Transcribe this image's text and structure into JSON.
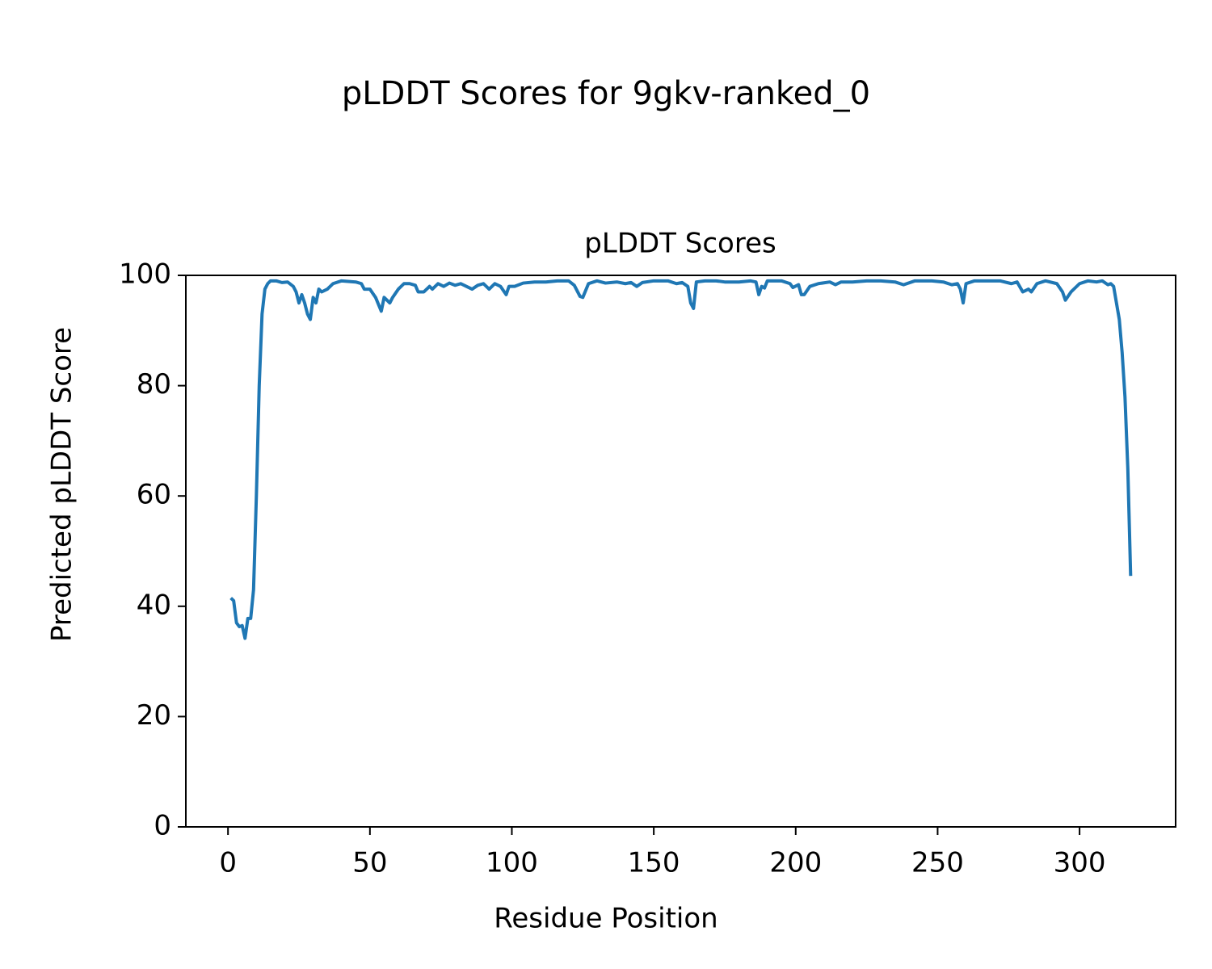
{
  "chart_data": {
    "type": "line",
    "title": "pLDDT Scores for 9gkv-ranked_0",
    "subtitle": "pLDDT Scores",
    "x_label": "Residue Position",
    "y_label": "Predicted pLDDT Score",
    "xlim": [
      -14.85,
      333.85
    ],
    "ylim": [
      0,
      100
    ],
    "xticks": [
      0,
      50,
      100,
      150,
      200,
      250,
      300
    ],
    "yticks": [
      0,
      20,
      40,
      60,
      80,
      100
    ],
    "grid": false,
    "series": [
      {
        "name": "pLDDT",
        "color": "#1f77b4",
        "x": [
          1,
          2,
          3,
          4,
          5,
          6,
          7,
          8,
          9,
          10,
          11,
          12,
          13,
          14,
          15,
          17,
          19,
          21,
          23,
          24,
          25,
          26,
          27,
          28,
          29,
          30,
          31,
          32,
          33,
          35,
          37,
          40,
          45,
          47,
          48,
          50,
          52,
          54,
          55,
          56,
          57,
          58,
          60,
          62,
          64,
          66,
          67,
          69,
          71,
          72,
          74,
          76,
          78,
          80,
          82,
          84,
          86,
          88,
          90,
          92,
          94,
          96,
          98,
          99,
          101,
          104,
          108,
          112,
          116,
          120,
          122,
          124,
          125,
          127,
          130,
          133,
          137,
          140,
          142,
          144,
          146,
          150,
          155,
          158,
          160,
          162,
          163,
          164,
          165,
          168,
          172,
          175,
          180,
          184,
          186,
          187,
          188,
          189,
          190,
          195,
          198,
          199,
          201,
          202,
          203,
          205,
          208,
          212,
          214,
          216,
          220,
          225,
          230,
          235,
          238,
          242,
          248,
          252,
          255,
          257,
          258,
          259,
          260,
          263,
          268,
          272,
          276,
          278,
          280,
          282,
          283,
          285,
          288,
          292,
          294,
          295,
          297,
          300,
          303,
          306,
          308,
          310,
          311,
          312,
          313,
          314,
          315,
          316,
          317,
          318
        ],
        "values": [
          41.5,
          41,
          37,
          36.3,
          36.5,
          34.2,
          37.8,
          37.8,
          43,
          60,
          80,
          93,
          97.5,
          98.5,
          99,
          99,
          98.7,
          98.8,
          98,
          97,
          95,
          96.5,
          95,
          93,
          92,
          96,
          95,
          97.5,
          97,
          97.5,
          98.5,
          99,
          98.8,
          98.5,
          97.5,
          97.5,
          96,
          93.5,
          96,
          95.5,
          95,
          96,
          97.5,
          98.5,
          98.5,
          98.2,
          97,
          97,
          98,
          97.5,
          98.5,
          98,
          98.6,
          98.2,
          98.5,
          98,
          97.5,
          98.2,
          98.5,
          97.5,
          98.5,
          98,
          96.5,
          98,
          98,
          98.6,
          98.8,
          98.8,
          99,
          99,
          98.2,
          96.2,
          96,
          98.5,
          99,
          98.6,
          98.8,
          98.5,
          98.7,
          98,
          98.7,
          99,
          99,
          98.5,
          98.7,
          98,
          95,
          94,
          98.8,
          99,
          99,
          98.8,
          98.8,
          99,
          98.8,
          96.5,
          98,
          97.7,
          99,
          99,
          98.5,
          97.8,
          98.3,
          96.5,
          96.5,
          98,
          98.5,
          98.8,
          98.3,
          98.8,
          98.8,
          99,
          99,
          98.8,
          98.3,
          99,
          99,
          98.8,
          98.3,
          98.5,
          97.5,
          95,
          98.5,
          99,
          99,
          99,
          98.5,
          98.8,
          97,
          97.5,
          97,
          98.5,
          99,
          98.5,
          97,
          95.5,
          97,
          98.5,
          99,
          98.8,
          99,
          98.3,
          98.5,
          98,
          95,
          92,
          86,
          78,
          65,
          45.5
        ]
      }
    ]
  }
}
